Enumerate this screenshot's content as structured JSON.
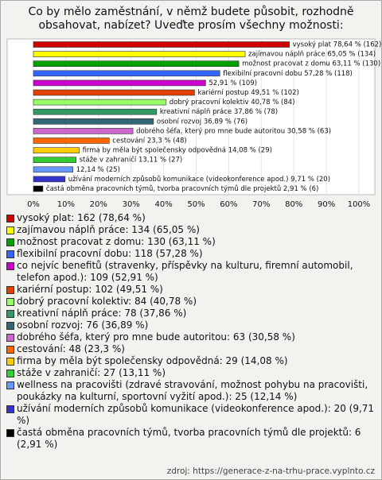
{
  "chart_data": {
    "type": "bar",
    "orientation": "horizontal",
    "title": "Co by mělo zaměstnání, v němž budete působit, rozhodně obsahovat, nabízet? Uveďte prosím všechny možnosti:",
    "values": [
      78.64,
      65.05,
      63.11,
      57.28,
      52.91,
      49.51,
      40.78,
      37.86,
      36.89,
      30.58,
      23.3,
      14.08,
      13.11,
      12.14,
      9.71,
      2.91
    ],
    "value_labels": [
      "vysoký plat 78,64 % (162)",
      "zajímavou náplň práce 65,05 % (134)",
      "možnost pracovat z domu 63,11 % (130)",
      "flexibilní pracovní dobu 57,28 % (118)",
      "52,91 % (109)",
      "kariérní postup 49,51 % (102)",
      "dobrý pracovní kolektiv 40,78 % (84)",
      "kreativní náplň práce 37,86 % (78)",
      "osobní rozvoj 36,89 % (76)",
      "dobrého šéfa, který pro mne bude autoritou 30,58 % (63)",
      "cestování 23,3 % (48)",
      "firma by měla být společensky odpovědná 14,08 % (29)",
      "stáže v zahraničí 13,11 % (27)",
      "12,14 % (25)",
      "užívání moderních způsobů komunikace (videokonference apod.) 9,71 % (20)",
      "častá obměna pracovních týmů, tvorba pracovních týmů dle projektů 2,91 % (6)"
    ],
    "legend_labels": [
      "vysoký plat: 162 (78,64 %)",
      "zajímavou náplň práce: 134 (65,05 %)",
      "možnost pracovat z domu: 130 (63,11 %)",
      "flexibilní pracovní dobu: 118 (57,28 %)",
      "co nejvíc benefitů (stravenky, příspěvky na kulturu, firemní automobil, telefon apod.): 109 (52,91 %)",
      "kariérní postup: 102 (49,51 %)",
      "dobrý pracovní kolektiv: 84 (40,78 %)",
      "kreativní náplň práce: 78 (37,86 %)",
      "osobní rozvoj: 76 (36,89 %)",
      "dobrého šéfa, který pro mne bude autoritou: 63 (30,58 %)",
      "cestování: 48 (23,3 %)",
      "firma by měla být společensky odpovědná: 29 (14,08 %)",
      "stáže v zahraničí: 27 (13,11 %)",
      "wellness na pracovišti (zdravé stravování, možnost pohybu na pracovišti, poukázky na kulturní, sportovní vyžití apod.): 25 (12,14 %)",
      "užívání moderních způsobů komunikace (videokonference apod.): 20 (9,71 %)",
      "častá obměna pracovních týmů, tvorba pracovních týmů dle projektů: 6 (2,91 %)"
    ],
    "colors": [
      "#d00000",
      "#ffff00",
      "#00a000",
      "#3366ff",
      "#cc00cc",
      "#e04000",
      "#99ff66",
      "#339966",
      "#336677",
      "#cc66cc",
      "#ff6600",
      "#ffcc00",
      "#33cc33",
      "#6699ff",
      "#3333cc",
      "#000000"
    ],
    "xlim": [
      0,
      100
    ],
    "xticks": [
      {
        "value": 0,
        "label": "0%"
      },
      {
        "value": 10,
        "label": "10%"
      },
      {
        "value": 20,
        "label": "20%"
      },
      {
        "value": 30,
        "label": "30%"
      },
      {
        "value": 40,
        "label": "40%"
      },
      {
        "value": 50,
        "label": "50%"
      },
      {
        "value": 60,
        "label": "60%"
      },
      {
        "value": 70,
        "label": "70%"
      },
      {
        "value": 80,
        "label": "80%"
      },
      {
        "value": 90,
        "label": "90%"
      },
      {
        "value": 100,
        "label": "100%"
      }
    ],
    "grid": true,
    "source": "zdroj: https://generace-z-na-trhu-prace.vyplnto.cz"
  }
}
